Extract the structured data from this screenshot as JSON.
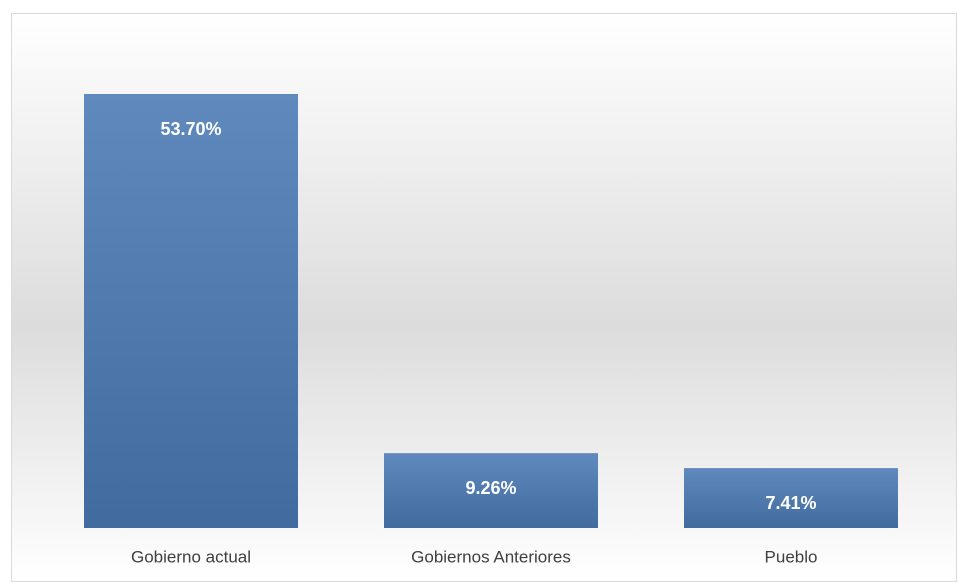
{
  "chart_data": {
    "type": "bar",
    "categories": [
      "Gobierno actual",
      "Gobiernos Anteriores",
      "Pueblo"
    ],
    "values": [
      53.7,
      9.26,
      7.41
    ],
    "value_labels": [
      "53.70%",
      "9.26%",
      "7.41%"
    ],
    "color": "#4a7ab5"
  }
}
